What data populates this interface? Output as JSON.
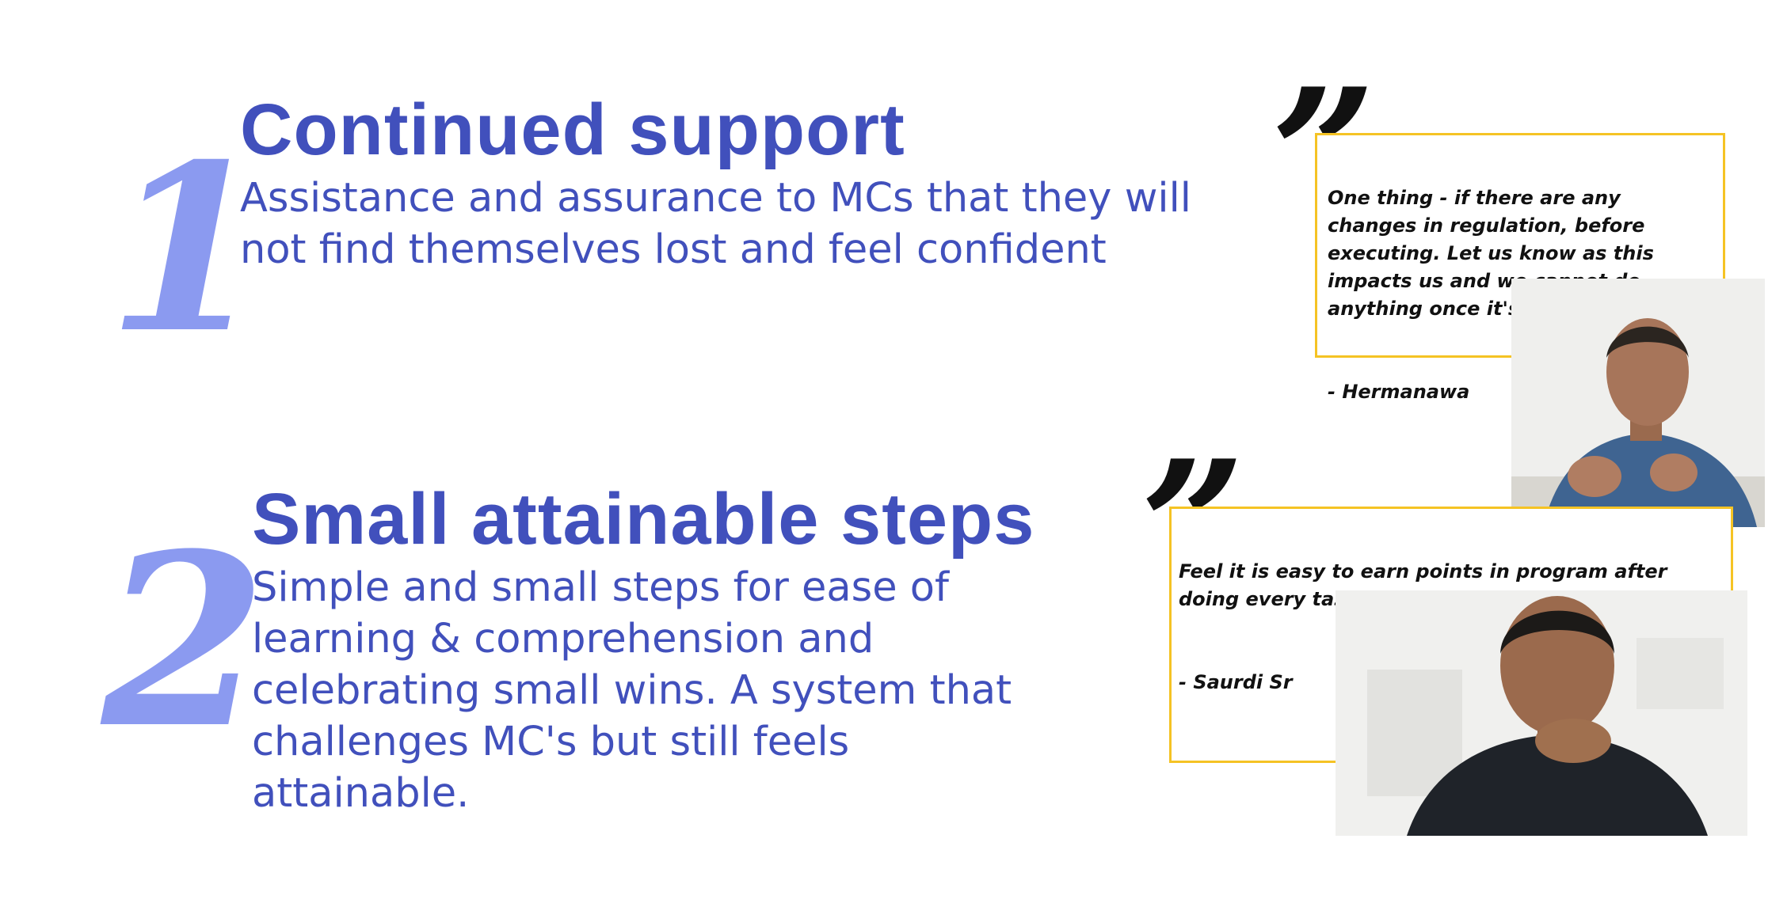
{
  "sections": [
    {
      "number": "1",
      "heading": "Continued support",
      "body": "Assistance and assurance to MCs that they will not find themselves lost and feel confident"
    },
    {
      "number": "2",
      "heading": "Small attainable steps",
      "body": "Simple and small steps for ease of learning & comprehension and celebrating small wins. A system that challenges MC's but still feels attainable."
    }
  ],
  "quotes": [
    {
      "mark": "”",
      "text": "One thing - if there are any changes in regulation, before executing. Let us know as this impacts us and we cannot do anything once it's out.",
      "author": "- Hermanawa"
    },
    {
      "mark": "”",
      "text": "Feel it is easy to earn points in program after doing every task",
      "author": "- Saurdi Sr"
    }
  ],
  "colors": {
    "accent": "#4150bc",
    "number": "#8b9af0",
    "quote_border": "#f5c324"
  }
}
